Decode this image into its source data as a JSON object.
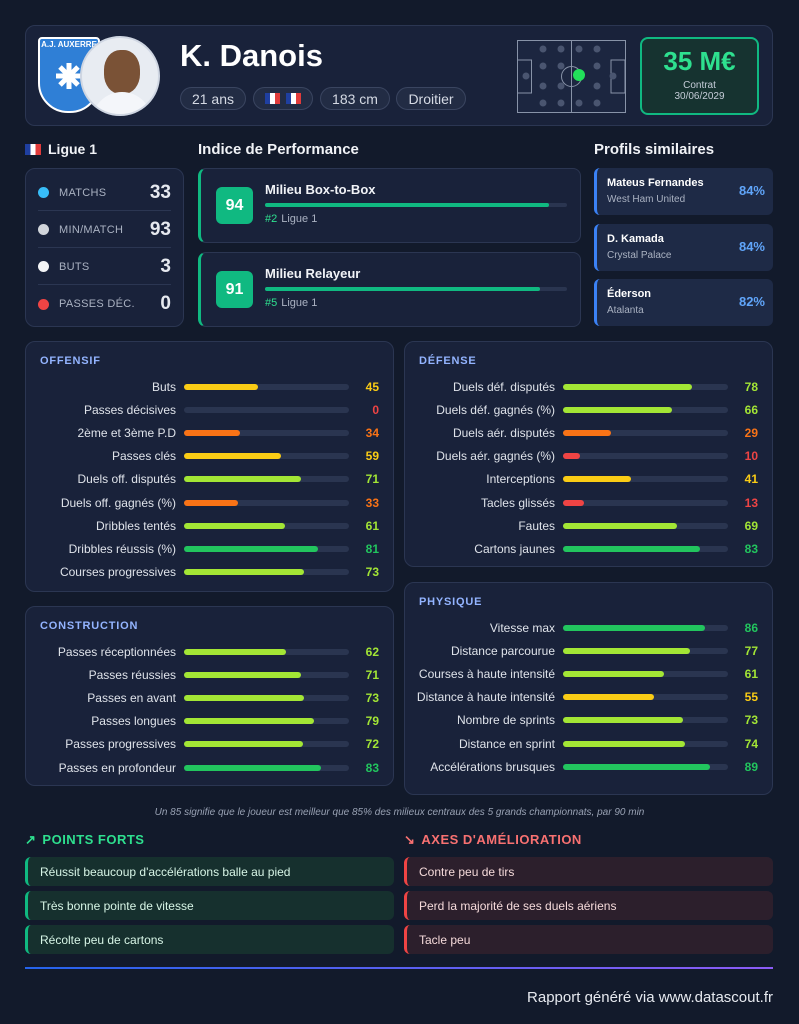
{
  "header": {
    "club": "A.J. AUXERRE",
    "name": "K. Danois",
    "age": "21 ans",
    "height": "183 cm",
    "foot": "Droitier",
    "value": "35 M€",
    "contract_label": "Contrat",
    "contract_date": "30/06/2029"
  },
  "league": {
    "name": "Ligue 1",
    "stats": [
      {
        "label": "MATCHS",
        "value": 33
      },
      {
        "label": "MIN/MATCH",
        "value": 93
      },
      {
        "label": "BUTS",
        "value": 3
      },
      {
        "label": "PASSES DÉC.",
        "value": 0
      }
    ]
  },
  "performance": {
    "title": "Indice de Performance",
    "items": [
      {
        "score": 94,
        "role": "Milieu Box-to-Box",
        "rank": "#2",
        "league": "Ligue 1"
      },
      {
        "score": 91,
        "role": "Milieu Relayeur",
        "rank": "#5",
        "league": "Ligue 1"
      }
    ]
  },
  "similar": {
    "title": "Profils similaires",
    "items": [
      {
        "name": "Mateus Fernandes",
        "club": "West Ham United",
        "score": "84%"
      },
      {
        "name": "D. Kamada",
        "club": "Crystal Palace",
        "score": "84%"
      },
      {
        "name": "Éderson",
        "club": "Atalanta",
        "score": "82%"
      }
    ]
  },
  "sections": [
    {
      "title": "OFFENSIF",
      "rows": [
        {
          "label": "Buts",
          "value": 45
        },
        {
          "label": "Passes décisives",
          "value": 0
        },
        {
          "label": "2ème et 3ème P.D",
          "value": 34
        },
        {
          "label": "Passes clés",
          "value": 59
        },
        {
          "label": "Duels off. disputés",
          "value": 71
        },
        {
          "label": "Duels off. gagnés (%)",
          "value": 33
        },
        {
          "label": "Dribbles tentés",
          "value": 61
        },
        {
          "label": "Dribbles réussis (%)",
          "value": 81
        },
        {
          "label": "Courses progressives",
          "value": 73
        }
      ]
    },
    {
      "title": "DÉFENSE",
      "rows": [
        {
          "label": "Duels déf. disputés",
          "value": 78
        },
        {
          "label": "Duels déf. gagnés (%)",
          "value": 66
        },
        {
          "label": "Duels aér. disputés",
          "value": 29
        },
        {
          "label": "Duels aér. gagnés (%)",
          "value": 10
        },
        {
          "label": "Interceptions",
          "value": 41
        },
        {
          "label": "Tacles glissés",
          "value": 13
        },
        {
          "label": "Fautes",
          "value": 69
        },
        {
          "label": "Cartons jaunes",
          "value": 83
        }
      ]
    },
    {
      "title": "CONSTRUCTION",
      "rows": [
        {
          "label": "Passes réceptionnées",
          "value": 62
        },
        {
          "label": "Passes réussies",
          "value": 71
        },
        {
          "label": "Passes en avant",
          "value": 73
        },
        {
          "label": "Passes longues",
          "value": 79
        },
        {
          "label": "Passes progressives",
          "value": 72
        },
        {
          "label": "Passes en profondeur",
          "value": 83
        }
      ]
    },
    {
      "title": "PHYSIQUE",
      "rows": [
        {
          "label": "Vitesse max",
          "value": 86
        },
        {
          "label": "Distance parcourue",
          "value": 77
        },
        {
          "label": "Courses à haute intensité",
          "value": 61
        },
        {
          "label": "Distance à haute intensité",
          "value": 55
        },
        {
          "label": "Nombre de sprints",
          "value": 73
        },
        {
          "label": "Distance en sprint",
          "value": 74
        },
        {
          "label": "Accélérations brusques",
          "value": 89
        }
      ]
    }
  ],
  "footnote": "Un 85 signifie que le joueur est meilleur que 85% des milieux centraux des 5 grands championnats, par 90 min",
  "strengths": {
    "title": "POINTS FORTS",
    "items": [
      "Réussit beaucoup d'accélérations balle au pied",
      "Très bonne pointe de vitesse",
      "Récolte peu de cartons"
    ]
  },
  "improvements": {
    "title": "AXES D'AMÉLIORATION",
    "items": [
      "Contre peu de tirs",
      "Perd la majorité de ses duels aériens",
      "Tacle peu"
    ]
  },
  "footer": "Rapport généré via www.datascout.fr"
}
